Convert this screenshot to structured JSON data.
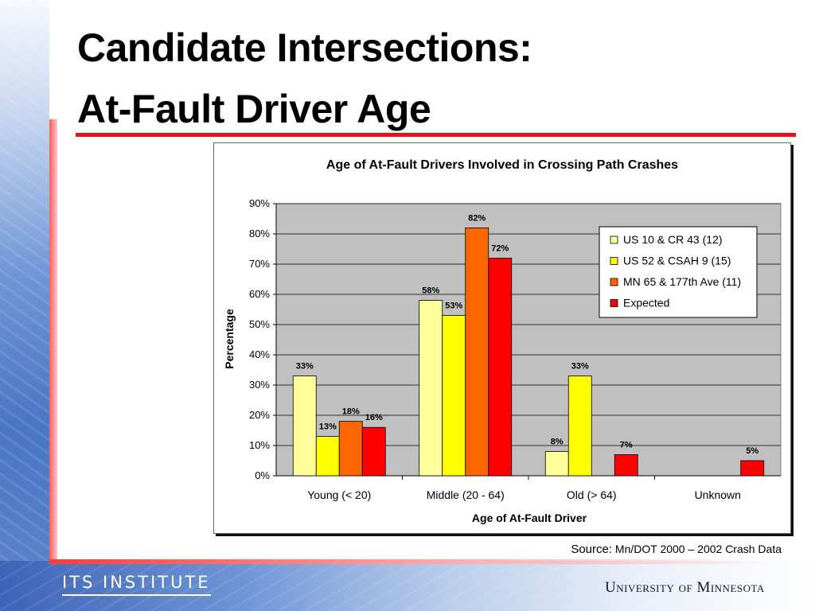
{
  "slide": {
    "title_line1": "Candidate Intersections:",
    "title_line2": "At-Fault Driver Age",
    "accent_color": "#e0131a",
    "source_label": "Source:",
    "source_text": " Mn/DOT 2000 – 2002 Crash Data",
    "footer_left_logo": "ITS INSTITUTE",
    "footer_right_logo": "University of Minnesota"
  },
  "chart_data": {
    "type": "bar",
    "title": "Age of At-Fault Drivers Involved in Crossing Path Crashes",
    "xlabel": "Age of At-Fault Driver",
    "ylabel": "Percentage",
    "ylim": [
      0,
      90
    ],
    "yticks": [
      "0%",
      "10%",
      "20%",
      "30%",
      "40%",
      "50%",
      "60%",
      "70%",
      "80%",
      "90%"
    ],
    "grid": true,
    "legend_position": "top-right",
    "plot_background": "#c0c0c0",
    "categories": [
      "Young (< 20)",
      "Middle (20 - 64)",
      "Old (> 64)",
      "Unknown"
    ],
    "series": [
      {
        "name": "US 10 & CR 43 (12)",
        "color": "#ffff99",
        "values": [
          33,
          58,
          8,
          0
        ],
        "labels": [
          "33%",
          "58%",
          "8%",
          ""
        ]
      },
      {
        "name": "US 52 & CSAH 9 (15)",
        "color": "#ffff00",
        "values": [
          13,
          53,
          33,
          0
        ],
        "labels": [
          "13%",
          "53%",
          "33%",
          ""
        ]
      },
      {
        "name": "MN 65 & 177th Ave (11)",
        "color": "#ff6600",
        "values": [
          18,
          82,
          0,
          0
        ],
        "labels": [
          "18%",
          "82%",
          "",
          ""
        ]
      },
      {
        "name": "Expected",
        "color": "#ff0000",
        "values": [
          16,
          72,
          7,
          5
        ],
        "labels": [
          "16%",
          "72%",
          "7%",
          "5%"
        ]
      }
    ]
  }
}
